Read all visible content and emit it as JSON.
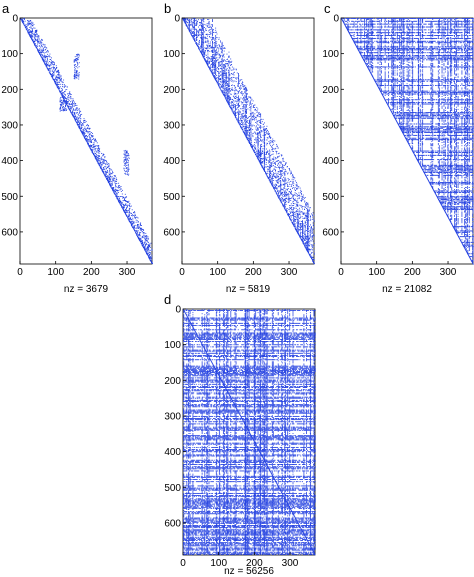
{
  "colors": {
    "marker": "#2340e0",
    "axis": "#000000",
    "background": "#ffffff"
  },
  "chart_data": [
    {
      "type": "heatmap",
      "panel_label": "a",
      "title": "",
      "xlabel": "nz = 3679",
      "ylabel": "",
      "nz": 3679,
      "pattern": "band",
      "xlim": [
        0,
        370
      ],
      "ylim": [
        0,
        690
      ],
      "y_inverted": true,
      "xticks": [
        0,
        100,
        200,
        300
      ],
      "yticks": [
        0,
        100,
        200,
        300,
        400,
        500,
        600
      ],
      "grid": false,
      "blocks": [
        {
          "x": [
            150,
            165
          ],
          "y": [
            100,
            170
          ]
        },
        {
          "x": [
            290,
            305
          ],
          "y": [
            370,
            440
          ]
        },
        {
          "x": [
            110,
            130
          ],
          "y": [
            220,
            260
          ]
        }
      ]
    },
    {
      "type": "heatmap",
      "panel_label": "b",
      "title": "",
      "xlabel": "nz = 5819",
      "ylabel": "",
      "nz": 5819,
      "pattern": "band-columns",
      "xlim": [
        0,
        370
      ],
      "ylim": [
        0,
        690
      ],
      "y_inverted": true,
      "xticks": [
        0,
        100,
        200,
        300
      ],
      "yticks": [
        0,
        100,
        200,
        300,
        400,
        500,
        600
      ],
      "grid": false
    },
    {
      "type": "heatmap",
      "panel_label": "c",
      "title": "",
      "xlabel": "nz = 21082",
      "ylabel": "",
      "nz": 21082,
      "pattern": "upper-triangle",
      "xlim": [
        0,
        370
      ],
      "ylim": [
        0,
        690
      ],
      "y_inverted": true,
      "xticks": [
        0,
        100,
        200,
        300
      ],
      "yticks": [
        0,
        100,
        200,
        300,
        400,
        500,
        600
      ],
      "grid": false
    },
    {
      "type": "heatmap",
      "panel_label": "d",
      "title": "",
      "xlabel": "nz = 56256",
      "ylabel": "",
      "nz": 56256,
      "pattern": "dense",
      "xlim": [
        0,
        370
      ],
      "ylim": [
        0,
        690
      ],
      "y_inverted": true,
      "xticks": [
        0,
        100,
        200,
        300
      ],
      "yticks": [
        0,
        100,
        200,
        300,
        400,
        500,
        600
      ],
      "grid": false
    }
  ]
}
